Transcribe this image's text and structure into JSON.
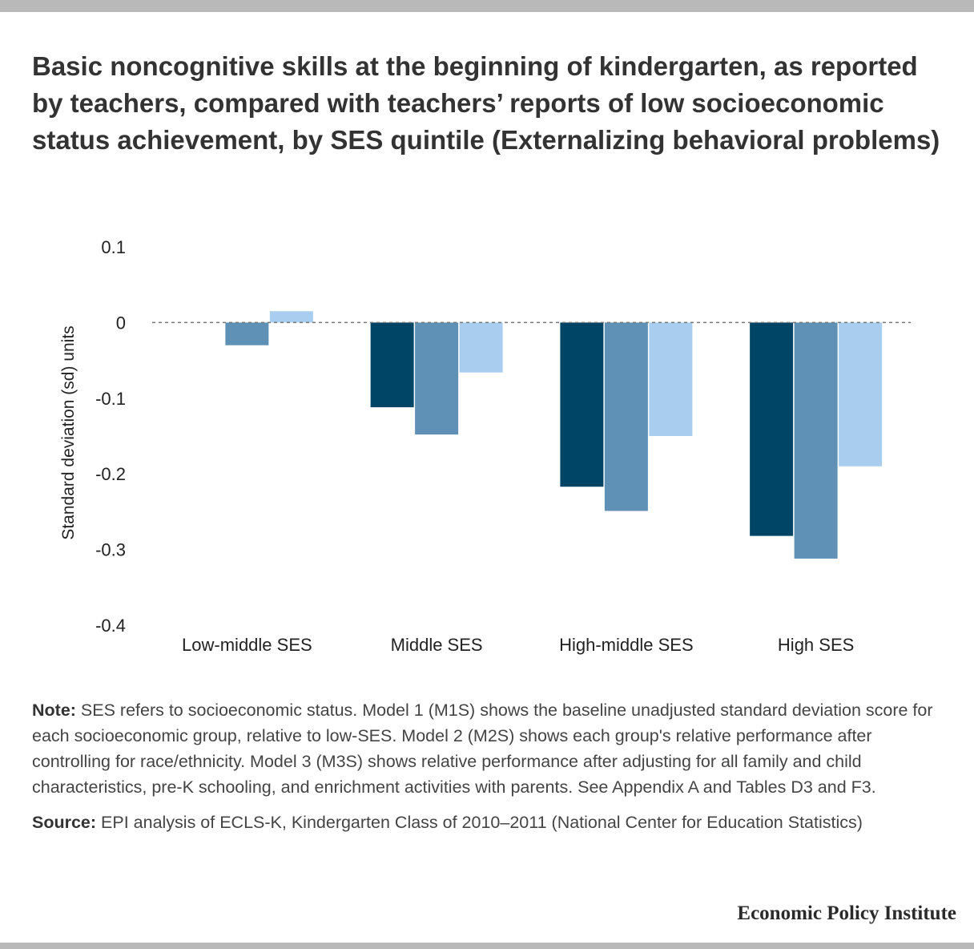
{
  "title": "Basic noncognitive skills at the beginning of kindergarten, as reported by teachers, compared with teachers’ reports of low socioeconomic status achievement, by SES quintile (Externalizing behavioral problems)",
  "chart_data": {
    "type": "bar",
    "title": "Basic noncognitive skills at the beginning of kindergarten, as reported by teachers, compared with teachers’ reports of low socioeconomic status achievement, by SES quintile (Externalizing behavioral problems)",
    "xlabel": "",
    "ylabel": "Standard deviation (sd) units",
    "ylim": [
      -0.4,
      0.1
    ],
    "yticks": [
      0.1,
      0,
      -0.1,
      -0.2,
      -0.3,
      -0.4
    ],
    "ytick_labels": [
      "0.1",
      "0",
      "-0.1",
      "-0.2",
      "-0.3",
      "-0.4"
    ],
    "zero_line": "dashed",
    "grid": false,
    "legend": "none",
    "categories": [
      "Low-middle SES",
      "Middle SES",
      "High-middle SES",
      "High SES"
    ],
    "series": [
      {
        "color": "#004466",
        "values": [
          0.0,
          -0.112,
          -0.217,
          -0.282
        ]
      },
      {
        "color": "#5f91b6",
        "values": [
          -0.03,
          -0.148,
          -0.249,
          -0.312
        ]
      },
      {
        "color": "#a9cdee",
        "values": [
          0.015,
          -0.066,
          -0.15,
          -0.19
        ]
      }
    ]
  },
  "notes": {
    "note_label": "Note:",
    "note_text": " SES refers to socioeconomic status. Model 1 (M1S) shows the baseline unadjusted standard deviation score for each socioeconomic group, relative to low-SES. Model 2 (M2S) shows each group's relative performance after controlling for race/ethnicity. Model 3 (M3S) shows relative performance after adjusting for all family and child characteristics, pre-K schooling, and enrichment activities with parents. See Appendix A and Tables D3 and F3.",
    "source_label": "Source:",
    "source_text": " EPI analysis of ECLS-K, Kindergarten Class of 2010–2011 (National Center for Education Statistics)"
  },
  "brand": "Economic Policy Institute"
}
